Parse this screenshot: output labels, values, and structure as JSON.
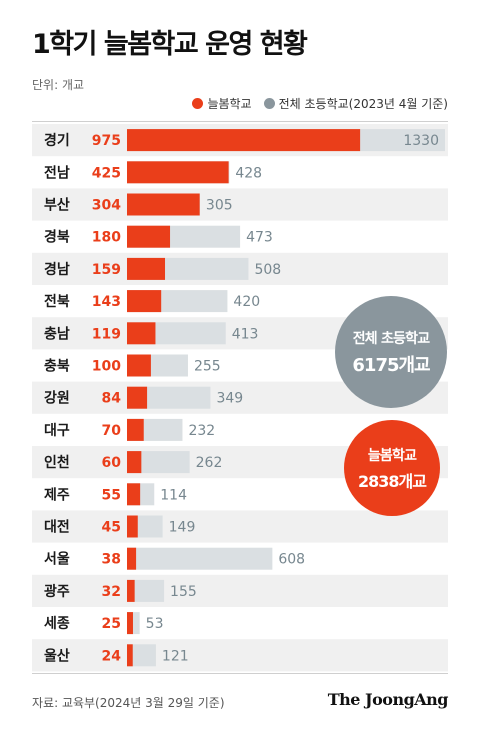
{
  "title": "1학기 늘봄학교 운영 현황",
  "unit": "단위: 개교",
  "legend": {
    "neulbom": "늘봄학교",
    "total": "전체 초등학교(2023년 4월 기준)"
  },
  "colors": {
    "neulbom": "#ea3e1a",
    "total": "#dadfe2",
    "total_label": "#77878f",
    "row_band": "#f0f0f0",
    "bubble_total": "#8a969d"
  },
  "bubbles": {
    "total_line1": "전체 초등학교",
    "total_line2": "6175개교",
    "neulbom_line1": "늘봄학교",
    "neulbom_line2": "2838개교"
  },
  "chart_data": {
    "type": "bar",
    "orientation": "horizontal",
    "categories": [
      "경기",
      "전남",
      "부산",
      "경북",
      "경남",
      "전북",
      "충남",
      "충북",
      "강원",
      "대구",
      "인천",
      "제주",
      "대전",
      "서울",
      "광주",
      "세종",
      "울산"
    ],
    "series": [
      {
        "name": "늘봄학교",
        "values": [
          975,
          425,
          304,
          180,
          159,
          143,
          119,
          100,
          84,
          70,
          60,
          55,
          45,
          38,
          32,
          25,
          24
        ]
      },
      {
        "name": "전체 초등학교(2023년 4월 기준)",
        "values": [
          1330,
          428,
          305,
          473,
          508,
          420,
          413,
          255,
          349,
          232,
          262,
          114,
          149,
          608,
          155,
          53,
          121
        ]
      }
    ],
    "xlim": [
      0,
      1330
    ],
    "grid": false,
    "legend_position": "top-right"
  },
  "source": "자료: 교육부(2024년 3월 29일 기준)",
  "brand": "The JoongAng"
}
